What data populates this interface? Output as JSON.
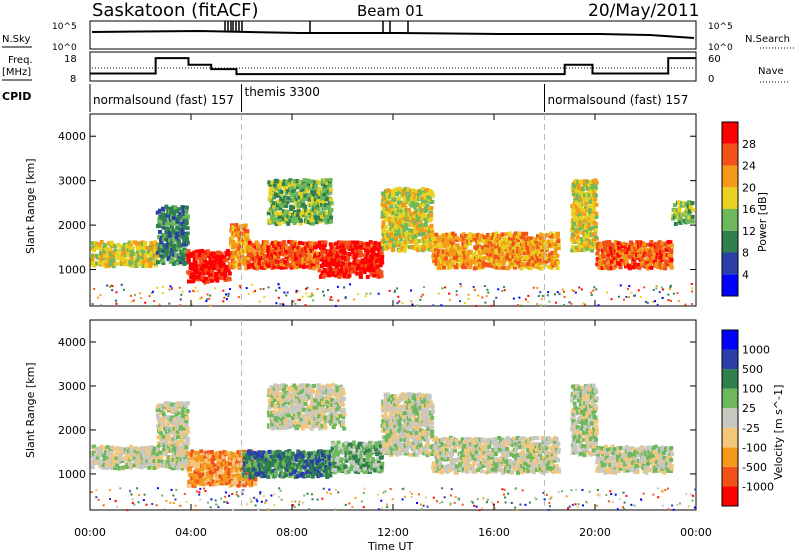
{
  "header": {
    "station": "Saskatoon (fitACF)",
    "beam": "Beam 01",
    "date": "20/May/2011"
  },
  "panel_labels": {
    "nsky": "N.Sky",
    "nsearch": "N.Search",
    "freq": "Freq.",
    "freq_unit": "[MHz]",
    "nave": "Nave",
    "cpid": "CPID",
    "nsky_ticks": [
      "10^5",
      "10^0"
    ],
    "nsearch_ticks": [
      "10^5",
      "10^0"
    ],
    "freq_ticks": [
      "18",
      "8"
    ],
    "nave_ticks": [
      "60",
      "0"
    ]
  },
  "cpid_segments": [
    {
      "start_h": 0,
      "end_h": 6,
      "label": "normalsound (fast) 157"
    },
    {
      "start_h": 6,
      "end_h": 18,
      "label": "themis 3300"
    },
    {
      "start_h": 18,
      "end_h": 24,
      "label": "normalsound (fast) 157"
    }
  ],
  "freq_steps": [
    {
      "from_h": 0,
      "to_h": 2.6,
      "mhz": 10.5
    },
    {
      "from_h": 2.6,
      "to_h": 3.9,
      "mhz": 17.5
    },
    {
      "from_h": 3.9,
      "to_h": 4.8,
      "mhz": 14.5
    },
    {
      "from_h": 4.8,
      "to_h": 5.8,
      "mhz": 12.5
    },
    {
      "from_h": 5.8,
      "to_h": 18.8,
      "mhz": 10.2
    },
    {
      "from_h": 18.8,
      "to_h": 19.9,
      "mhz": 14.5
    },
    {
      "from_h": 19.9,
      "to_h": 22.9,
      "mhz": 10.5
    },
    {
      "from_h": 22.9,
      "to_h": 24,
      "mhz": 17.5
    }
  ],
  "chart_data": {
    "type": "heatmap",
    "x_range_hours": [
      0,
      24
    ],
    "x_ticks": [
      "00:00",
      "04:00",
      "08:00",
      "12:00",
      "16:00",
      "20:00",
      "00:00"
    ],
    "x_label": "Time UT",
    "y_label": "Slant Range [km]",
    "y_range_km": [
      180,
      4500
    ],
    "y_ticks": [
      "1000",
      "2000",
      "3000",
      "4000"
    ],
    "panels": [
      {
        "name": "power",
        "colorbar_label": "Power [dB]",
        "colorbar_ticks": [
          "28",
          "24",
          "20",
          "16",
          "12",
          "8",
          "4"
        ],
        "colors": [
          "#0000ff",
          "#2a3fa8",
          "#2f7f4f",
          "#6db85c",
          "#e8d21f",
          "#f39a1a",
          "#f2521a",
          "#ff0000"
        ],
        "blobs": [
          {
            "t0": 0.0,
            "t1": 2.6,
            "r0": 1050,
            "r1": 1600,
            "c": 4
          },
          {
            "t0": 2.6,
            "t1": 3.8,
            "r0": 1100,
            "r1": 2400,
            "c": 2
          },
          {
            "t0": 3.8,
            "t1": 5.5,
            "r0": 700,
            "r1": 1400,
            "c": 7
          },
          {
            "t0": 5.5,
            "t1": 6.2,
            "r0": 1000,
            "r1": 2000,
            "c": 5
          },
          {
            "t0": 6.2,
            "t1": 9.0,
            "r0": 1000,
            "r1": 1600,
            "c": 6
          },
          {
            "t0": 7.0,
            "t1": 9.5,
            "r0": 2000,
            "r1": 3000,
            "c": 3
          },
          {
            "t0": 9.0,
            "t1": 11.5,
            "r0": 800,
            "r1": 1600,
            "c": 7
          },
          {
            "t0": 11.5,
            "t1": 13.5,
            "r0": 1400,
            "r1": 2800,
            "c": 4
          },
          {
            "t0": 13.5,
            "t1": 18.5,
            "r0": 1000,
            "r1": 1800,
            "c": 5
          },
          {
            "t0": 19.0,
            "t1": 20.0,
            "r0": 1400,
            "r1": 3000,
            "c": 4
          },
          {
            "t0": 20.0,
            "t1": 23.0,
            "r0": 1000,
            "r1": 1600,
            "c": 6
          },
          {
            "t0": 23.0,
            "t1": 23.8,
            "r0": 2000,
            "r1": 2500,
            "c": 3
          }
        ]
      },
      {
        "name": "velocity",
        "colorbar_label": "Velocity [m s^-1]",
        "colorbar_ticks": [
          "1000",
          "500",
          "100",
          "25",
          "-25",
          "-100",
          "-500",
          "-1000"
        ],
        "colors": [
          "#ff0000",
          "#f2521a",
          "#f39a1a",
          "#f3c67a",
          "#c8c8c0",
          "#6db85c",
          "#2f7f4f",
          "#2a3fa8",
          "#0000ff"
        ],
        "blobs": [
          {
            "t0": 0.0,
            "t1": 2.6,
            "r0": 1100,
            "r1": 1600,
            "c": 4
          },
          {
            "t0": 2.6,
            "t1": 3.8,
            "r0": 1100,
            "r1": 2600,
            "c": 4
          },
          {
            "t0": 3.8,
            "t1": 6.5,
            "r0": 700,
            "r1": 1500,
            "c": 2
          },
          {
            "t0": 6.0,
            "t1": 9.5,
            "r0": 900,
            "r1": 1500,
            "c": 6
          },
          {
            "t0": 7.0,
            "t1": 10.0,
            "r0": 2000,
            "r1": 3000,
            "c": 4
          },
          {
            "t0": 9.5,
            "t1": 11.5,
            "r0": 1000,
            "r1": 1700,
            "c": 5
          },
          {
            "t0": 11.5,
            "t1": 13.5,
            "r0": 1400,
            "r1": 2800,
            "c": 4
          },
          {
            "t0": 13.5,
            "t1": 18.5,
            "r0": 1000,
            "r1": 1800,
            "c": 4
          },
          {
            "t0": 19.0,
            "t1": 20.0,
            "r0": 1400,
            "r1": 3000,
            "c": 4
          },
          {
            "t0": 20.0,
            "t1": 23.0,
            "r0": 1000,
            "r1": 1600,
            "c": 4
          }
        ]
      }
    ]
  }
}
